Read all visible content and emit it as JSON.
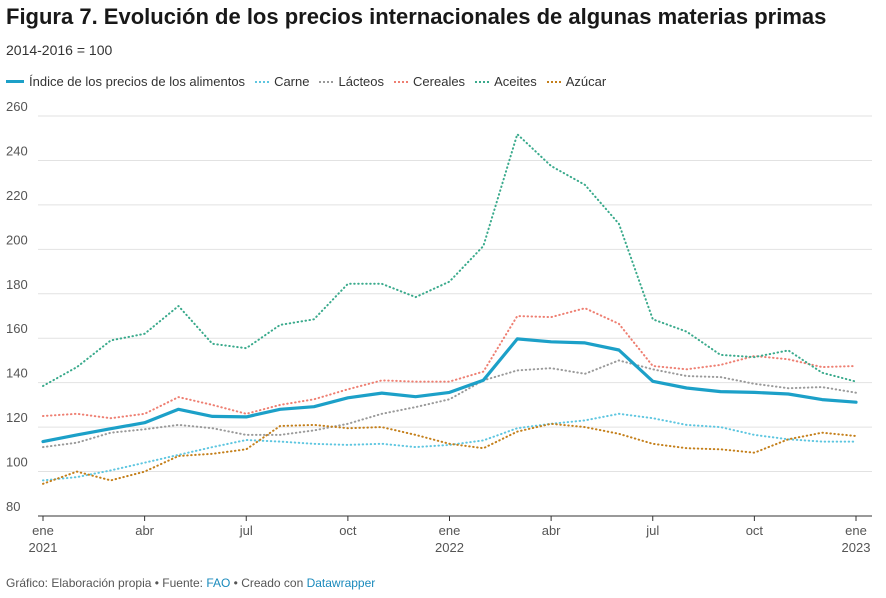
{
  "title": "Figura 7. Evolución de los precios internacionales de algunas materias primas",
  "subtitle": "2014-2016 = 100",
  "footer": {
    "prefix": "Gráfico: Elaboración propia • Fuente: ",
    "source": "FAO",
    "middle": " • Creado con ",
    "tool": "Datawrapper"
  },
  "chart_data": {
    "type": "line",
    "x": [
      "2021-01",
      "2021-02",
      "2021-03",
      "2021-04",
      "2021-05",
      "2021-06",
      "2021-07",
      "2021-08",
      "2021-09",
      "2021-10",
      "2021-11",
      "2021-12",
      "2022-01",
      "2022-02",
      "2022-03",
      "2022-04",
      "2022-05",
      "2022-06",
      "2022-07",
      "2022-08",
      "2022-09",
      "2022-10",
      "2022-11",
      "2022-12",
      "2023-01"
    ],
    "x_ticks": [
      {
        "index": 0,
        "label": "ene",
        "year": "2021"
      },
      {
        "index": 3,
        "label": "abr",
        "year": ""
      },
      {
        "index": 6,
        "label": "jul",
        "year": ""
      },
      {
        "index": 9,
        "label": "oct",
        "year": ""
      },
      {
        "index": 12,
        "label": "ene",
        "year": "2022"
      },
      {
        "index": 15,
        "label": "abr",
        "year": ""
      },
      {
        "index": 18,
        "label": "jul",
        "year": ""
      },
      {
        "index": 21,
        "label": "oct",
        "year": ""
      },
      {
        "index": 24,
        "label": "ene",
        "year": "2023"
      }
    ],
    "y_ticks": [
      80,
      100,
      120,
      140,
      160,
      180,
      200,
      220,
      240,
      260
    ],
    "ylim": [
      80,
      260
    ],
    "grid": true,
    "legend_position": "top-left",
    "series": [
      {
        "name": "Índice de los precios de los alimentos",
        "color": "#1ca0c8",
        "style": "solid",
        "values": [
          113.5,
          116.5,
          119.3,
          122,
          128,
          124.8,
          124.6,
          128,
          129.2,
          133.2,
          135.3,
          133.7,
          135.6,
          141.1,
          159.7,
          158.4,
          157.9,
          154.7,
          140.6,
          137.6,
          136,
          135.6,
          134.9,
          132.4,
          131.2
        ]
      },
      {
        "name": "Carne",
        "color": "#5ec6e0",
        "style": "dotted",
        "values": [
          96,
          97.5,
          100.5,
          104,
          107.5,
          111,
          114.2,
          113.5,
          112.5,
          112,
          112.5,
          111,
          112,
          114,
          119.5,
          121.5,
          123,
          126,
          124,
          121,
          120,
          116.5,
          114.5,
          113.5,
          113.5
        ]
      },
      {
        "name": "Lácteos",
        "color": "#9a9a9a",
        "style": "dotted",
        "values": [
          111,
          113,
          117.5,
          119,
          121,
          119.5,
          116.5,
          116.5,
          118.5,
          121.5,
          126,
          129,
          132.5,
          141,
          145.5,
          146.5,
          144,
          150,
          146,
          143,
          142.5,
          139.5,
          137.5,
          138,
          135.5
        ]
      },
      {
        "name": "Cereales",
        "color": "#ee7f72",
        "style": "dotted",
        "values": [
          125,
          126,
          124,
          126,
          133.5,
          130,
          126,
          130,
          132.5,
          137,
          141,
          140.5,
          140.5,
          145,
          170,
          169.5,
          173.5,
          166.5,
          147.5,
          146,
          148,
          152,
          150.5,
          147,
          147.5
        ]
      },
      {
        "name": "Aceites",
        "color": "#3aaa8c",
        "style": "dotted",
        "values": [
          138.5,
          147,
          159,
          162,
          174.5,
          157.5,
          155.5,
          166,
          168.5,
          184.5,
          184.5,
          178.5,
          185.5,
          201.5,
          251.8,
          237.5,
          229,
          211.5,
          168.5,
          163,
          152.5,
          151.5,
          154.5,
          144.5,
          140.5
        ]
      },
      {
        "name": "Azúcar",
        "color": "#c47f1a",
        "style": "dotted",
        "values": [
          94.5,
          100,
          96,
          100,
          107,
          108,
          110,
          120.5,
          121,
          119.5,
          120,
          116.5,
          112.5,
          110.5,
          118,
          121.5,
          120,
          117,
          112.5,
          110.5,
          110,
          108.5,
          114.5,
          117.5,
          116
        ]
      }
    ]
  }
}
